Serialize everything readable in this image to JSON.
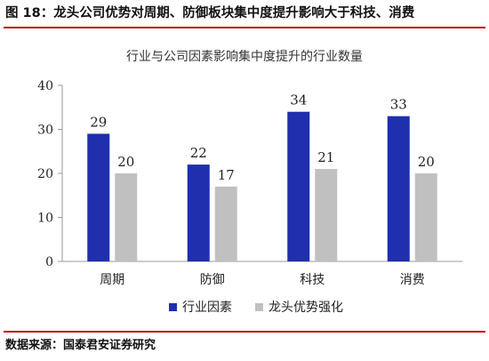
{
  "figure": {
    "title": "图 18：龙头公司优势对周期、防御板块集中度提升影响大于科技、消费",
    "source": "数据来源：国泰君安证券研究"
  },
  "chart_data": {
    "type": "bar",
    "title": "行业与公司因素影响集中度提升的行业数量",
    "xlabel": "",
    "ylabel": "",
    "categories": [
      "周期",
      "防御",
      "科技",
      "消费"
    ],
    "series": [
      {
        "name": "行业因素",
        "color": "#1f2fae",
        "values": [
          29,
          22,
          34,
          33
        ]
      },
      {
        "name": "龙头优势强化",
        "color": "#c0c0c0",
        "values": [
          20,
          17,
          21,
          20
        ]
      }
    ],
    "ylim": [
      0,
      40
    ],
    "yticks": [
      0,
      10,
      20,
      30,
      40
    ],
    "data_labels": true,
    "grid": false,
    "legend_position": "bottom"
  }
}
